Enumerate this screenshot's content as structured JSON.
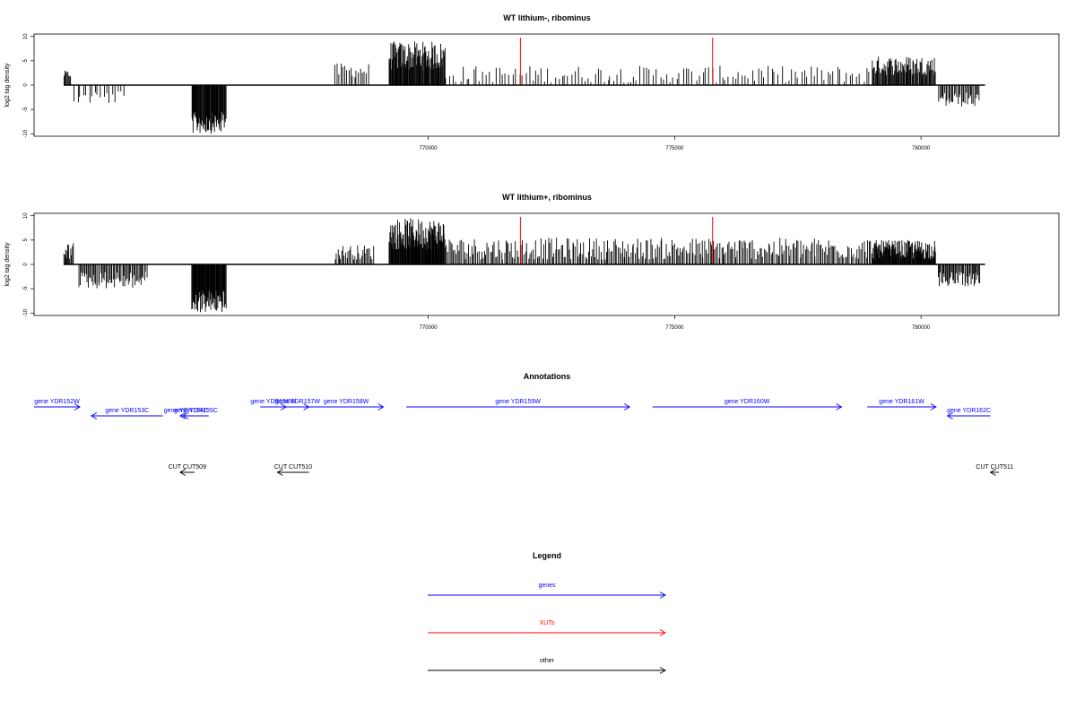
{
  "chart_data": [
    {
      "type": "bar",
      "title": "WT lithium-, ribominus",
      "ylabel": "log2 tag density",
      "xlim": [
        762000,
        782800
      ],
      "ylim": [
        -10.5,
        10.5
      ],
      "xticks": [
        770000,
        775000,
        780000
      ],
      "xtick_labels": [
        "770000",
        "775000",
        "780000"
      ],
      "yticks": [
        -10,
        -5,
        0,
        5,
        10
      ],
      "ytick_labels": [
        "-10",
        "-5",
        "0",
        "5",
        "10"
      ],
      "baseline": [
        762600,
        781300
      ],
      "red_markers": [
        771870,
        775770
      ],
      "segments": [
        {
          "start": 762600,
          "end": 762750,
          "sign": 1,
          "low": 1.5,
          "high": 3.0,
          "n": 8
        },
        {
          "start": 762800,
          "end": 763850,
          "sign": -1,
          "low": 1.0,
          "high": 4.0,
          "n": 18
        },
        {
          "start": 765200,
          "end": 765900,
          "sign": -1,
          "low": 5.5,
          "high": 10.0,
          "n": 60
        },
        {
          "start": 768100,
          "end": 768800,
          "sign": 1,
          "low": 1.5,
          "high": 4.5,
          "n": 18
        },
        {
          "start": 769200,
          "end": 770350,
          "sign": 1,
          "low": 3.0,
          "high": 9.0,
          "n": 90
        },
        {
          "start": 770350,
          "end": 779000,
          "sign": 1,
          "low": 0.5,
          "high": 4.0,
          "n": 130
        },
        {
          "start": 779000,
          "end": 780300,
          "sign": 1,
          "low": 2.0,
          "high": 6.0,
          "n": 80
        },
        {
          "start": 780350,
          "end": 781200,
          "sign": -1,
          "low": 1.5,
          "high": 4.5,
          "n": 35
        }
      ]
    },
    {
      "type": "bar",
      "title": "WT lithium+, ribominus",
      "ylabel": "log2 tag density",
      "xlim": [
        762000,
        782800
      ],
      "ylim": [
        -10.5,
        10.5
      ],
      "xticks": [
        770000,
        775000,
        780000
      ],
      "xtick_labels": [
        "770000",
        "775000",
        "780000"
      ],
      "yticks": [
        -10,
        -5,
        0,
        5,
        10
      ],
      "ytick_labels": [
        "-10",
        "-5",
        "0",
        "5",
        "10"
      ],
      "baseline": [
        762600,
        781300
      ],
      "red_markers": [
        771870,
        775770
      ],
      "segments": [
        {
          "start": 762600,
          "end": 762800,
          "sign": 1,
          "low": 1.0,
          "high": 4.5,
          "n": 12
        },
        {
          "start": 762900,
          "end": 764300,
          "sign": -1,
          "low": 1.5,
          "high": 5.0,
          "n": 60
        },
        {
          "start": 765200,
          "end": 765900,
          "sign": -1,
          "low": 5.0,
          "high": 10.0,
          "n": 70
        },
        {
          "start": 768100,
          "end": 768900,
          "sign": 1,
          "low": 1.0,
          "high": 4.0,
          "n": 30
        },
        {
          "start": 769200,
          "end": 770350,
          "sign": 1,
          "low": 3.0,
          "high": 9.5,
          "n": 110
        },
        {
          "start": 770350,
          "end": 779000,
          "sign": 1,
          "low": 1.0,
          "high": 5.5,
          "n": 300
        },
        {
          "start": 779000,
          "end": 780300,
          "sign": 1,
          "low": 1.0,
          "high": 5.0,
          "n": 120
        },
        {
          "start": 780350,
          "end": 781200,
          "sign": -1,
          "low": 1.5,
          "high": 4.5,
          "n": 45
        }
      ]
    }
  ],
  "annotations": {
    "title": "Annotations",
    "genes": [
      {
        "label": "gene YDR152W",
        "start": 762000,
        "end": 762800,
        "dir": "right",
        "row": 0
      },
      {
        "label": "gene YDR153C",
        "start": 763000,
        "end": 764250,
        "dir": "left",
        "row": 1
      },
      {
        "label": "gene YDR154C",
        "start": 764550,
        "end": 764750,
        "dir": "left",
        "row": 1
      },
      {
        "label": "gene YDR155C",
        "start": 764600,
        "end": 765050,
        "dir": "left",
        "row": 1
      },
      {
        "label": "gene YDR156W",
        "start": 765950,
        "end": 766400,
        "dir": "right",
        "row": 0
      },
      {
        "label": "gene YDR157W",
        "start": 766400,
        "end": 766800,
        "dir": "right",
        "row": 0
      },
      {
        "label": "gene YDR158W",
        "start": 766800,
        "end": 768100,
        "dir": "right",
        "row": 0
      },
      {
        "label": "gene YDR159W",
        "start": 768500,
        "end": 772400,
        "dir": "right",
        "row": 0
      },
      {
        "label": "gene YDR160W",
        "start": 772800,
        "end": 776100,
        "dir": "right",
        "row": 0
      },
      {
        "label": "gene YDR161W",
        "start": 776550,
        "end": 777750,
        "dir": "right",
        "row": 0
      },
      {
        "label": "gene YDR162C",
        "start": 777950,
        "end": 778700,
        "dir": "left",
        "row": 1
      }
    ],
    "others": [
      {
        "label": "CUT CUT509",
        "start": 764550,
        "end": 764800,
        "dir": "left"
      },
      {
        "label": "CUT CUT510",
        "start": 766250,
        "end": 766800,
        "dir": "left"
      },
      {
        "label": "CUT CUT511",
        "start": 778700,
        "end": 778850,
        "dir": "left"
      }
    ]
  },
  "legend": {
    "title": "Legend",
    "items": [
      {
        "label": "genes",
        "color": "#0000ff"
      },
      {
        "label": "XUTs",
        "color": "#ff0000"
      },
      {
        "label": "other",
        "color": "#000000"
      }
    ]
  },
  "colors": {
    "gene": "#0000ff",
    "xut": "#ff0000",
    "other": "#000000"
  }
}
